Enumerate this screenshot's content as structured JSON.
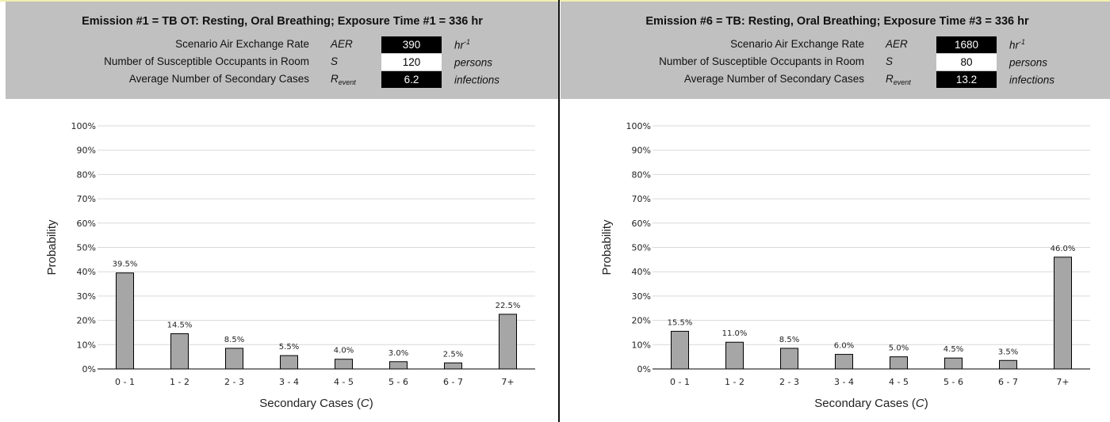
{
  "panels": [
    {
      "title": "Emission #1 = TB OT: Resting, Oral Breathing; Exposure Time #1 = 336 hr",
      "params": [
        {
          "label": "Scenario Air Exchange Rate",
          "symbol": "AER",
          "symbol_sub": "",
          "value": "390",
          "unit": "hr",
          "unit_sup": "-1",
          "value_style": "dark"
        },
        {
          "label": "Number of Susceptible Occupants in Room",
          "symbol": "S",
          "symbol_sub": "",
          "value": "120",
          "unit": "persons",
          "unit_sup": "",
          "value_style": "light"
        },
        {
          "label": "Average Number of Secondary Cases",
          "symbol": "R",
          "symbol_sub": "event",
          "value": "6.2",
          "unit": "infections",
          "unit_sup": "",
          "value_style": "dark"
        }
      ]
    },
    {
      "title": "Emission #6 = TB: Resting, Oral Breathing; Exposure Time #3 = 336 hr",
      "params": [
        {
          "label": "Scenario Air Exchange Rate",
          "symbol": "AER",
          "symbol_sub": "",
          "value": "1680",
          "unit": "hr",
          "unit_sup": "-1",
          "value_style": "dark"
        },
        {
          "label": "Number of Susceptible Occupants in Room",
          "symbol": "S",
          "symbol_sub": "",
          "value": "80",
          "unit": "persons",
          "unit_sup": "",
          "value_style": "light"
        },
        {
          "label": "Average Number of Secondary Cases",
          "symbol": "R",
          "symbol_sub": "event",
          "value": "13.2",
          "unit": "infections",
          "unit_sup": "",
          "value_style": "dark"
        }
      ]
    }
  ],
  "chart_data": [
    {
      "type": "bar",
      "categories": [
        "0 - 1",
        "1 - 2",
        "2 - 3",
        "3 - 4",
        "4 - 5",
        "5 - 6",
        "6 - 7",
        "7+"
      ],
      "values": [
        39.5,
        14.5,
        8.5,
        5.5,
        4.0,
        3.0,
        2.5,
        22.5
      ],
      "data_labels": [
        "39.5%",
        "14.5%",
        "8.5%",
        "5.5%",
        "4.0%",
        "3.0%",
        "2.5%",
        "22.5%"
      ],
      "xlabel": "Secondary Cases (",
      "xlabel_var": "C",
      "xlabel_end": ")",
      "ylabel": "Probability",
      "ylim": [
        0,
        100
      ],
      "yticks": [
        "0%",
        "10%",
        "20%",
        "30%",
        "40%",
        "50%",
        "60%",
        "70%",
        "80%",
        "90%",
        "100%"
      ],
      "grid": true,
      "bar_color": "#a6a6a6"
    },
    {
      "type": "bar",
      "categories": [
        "0 - 1",
        "1 - 2",
        "2 - 3",
        "3 - 4",
        "4 - 5",
        "5 - 6",
        "6 - 7",
        "7+"
      ],
      "values": [
        15.5,
        11.0,
        8.5,
        6.0,
        5.0,
        4.5,
        3.5,
        46.0
      ],
      "data_labels": [
        "15.5%",
        "11.0%",
        "8.5%",
        "6.0%",
        "5.0%",
        "4.5%",
        "3.5%",
        "46.0%"
      ],
      "xlabel": "Secondary Cases (",
      "xlabel_var": "C",
      "xlabel_end": ")",
      "ylabel": "Probability",
      "ylim": [
        0,
        100
      ],
      "yticks": [
        "0%",
        "10%",
        "20%",
        "30%",
        "40%",
        "50%",
        "60%",
        "70%",
        "80%",
        "90%",
        "100%"
      ],
      "grid": true,
      "bar_color": "#a6a6a6"
    }
  ]
}
